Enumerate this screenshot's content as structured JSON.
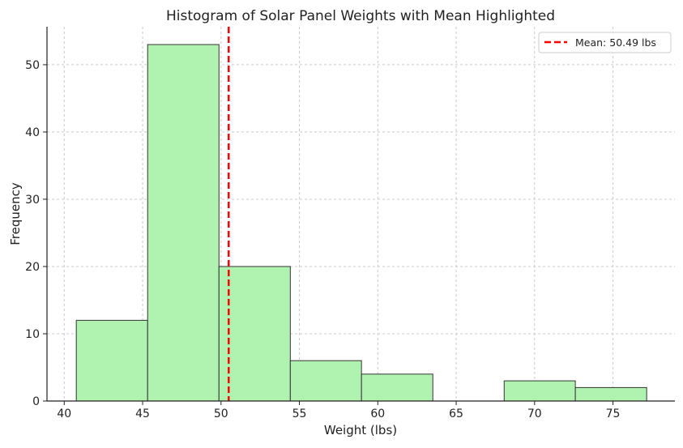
{
  "chart_data": {
    "type": "bar",
    "title": "Histogram of Solar Panel Weights with Mean Highlighted",
    "xlabel": "Weight (lbs)",
    "ylabel": "Frequency",
    "bin_edges": [
      40.77,
      45.32,
      49.87,
      54.42,
      58.96,
      63.51,
      68.06,
      72.6,
      77.15
    ],
    "values": [
      12,
      53,
      20,
      6,
      4,
      0,
      3,
      2
    ],
    "xlim": [
      38.9,
      78.95
    ],
    "ylim": [
      0,
      55.65
    ],
    "xticks": [
      40,
      45,
      50,
      55,
      60,
      65,
      70,
      75
    ],
    "yticks": [
      0,
      10,
      20,
      30,
      40,
      50
    ],
    "grid": true,
    "bar_color": "#b0f2b0",
    "bar_edge_color": "#333333",
    "mean": {
      "value": 50.49,
      "label": "Mean: 50.49 lbs",
      "color": "#ff0000",
      "style": "dashed"
    },
    "legend_placement": "top-right"
  }
}
